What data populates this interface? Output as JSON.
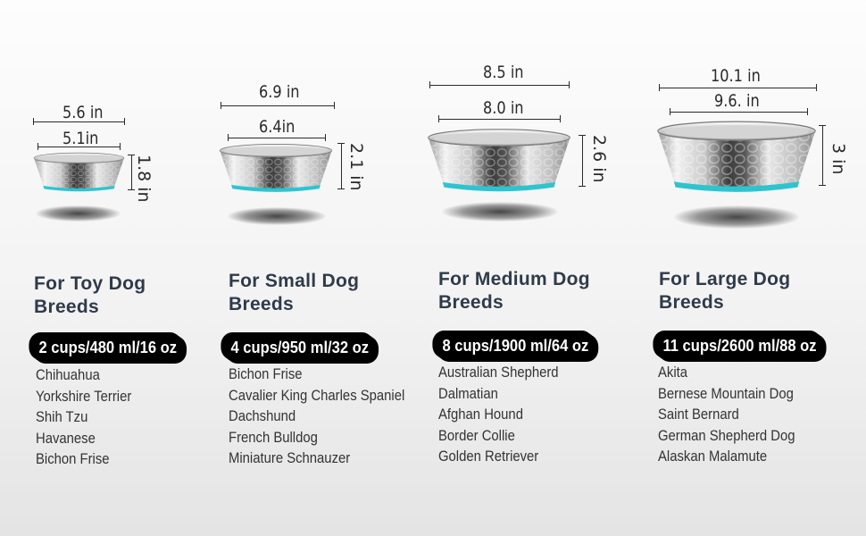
{
  "accent_color": "#2ec4cf",
  "products": [
    {
      "dimensions": {
        "outer_diameter": "5.6 in",
        "inner_diameter": "5.1in",
        "height": "1.8 in"
      },
      "heading": {
        "line1": "For Toy Dog",
        "line2": "Breeds"
      },
      "capacity": "2 cups/480 ml/16 oz",
      "breeds": [
        "Chihuahua",
        "Yorkshire Terrier",
        "Shih Tzu",
        "Havanese",
        "Bichon Frise"
      ]
    },
    {
      "dimensions": {
        "outer_diameter": "6.9 in",
        "inner_diameter": "6.4in",
        "height": "2.1 in"
      },
      "heading": {
        "line1": "For Small Dog",
        "line2": "Breeds"
      },
      "capacity": "4 cups/950 ml/32 oz",
      "breeds": [
        "Bichon Frise",
        "Cavalier King Charles Spaniel",
        "Dachshund",
        "French Bulldog",
        "Miniature Schnauzer"
      ]
    },
    {
      "dimensions": {
        "outer_diameter": "8.5 in",
        "inner_diameter": "8.0 in",
        "height": "2.6 in"
      },
      "heading": {
        "line1": "For Medium Dog",
        "line2": "Breeds"
      },
      "capacity": "8 cups/1900 ml/64 oz",
      "breeds": [
        "Australian Shepherd",
        "Dalmatian",
        "Afghan Hound",
        "Border Collie",
        "Golden Retriever"
      ]
    },
    {
      "dimensions": {
        "outer_diameter": "10.1 in",
        "inner_diameter": "9.6. in",
        "height": "3 in"
      },
      "heading": {
        "line1": "For Large Dog",
        "line2": "Breeds"
      },
      "capacity": "11 cups/2600 ml/88 oz",
      "breeds": [
        "Akita",
        "Bernese Mountain Dog",
        "Saint Bernard",
        "German Shepherd Dog",
        "Alaskan Malamute"
      ]
    }
  ]
}
